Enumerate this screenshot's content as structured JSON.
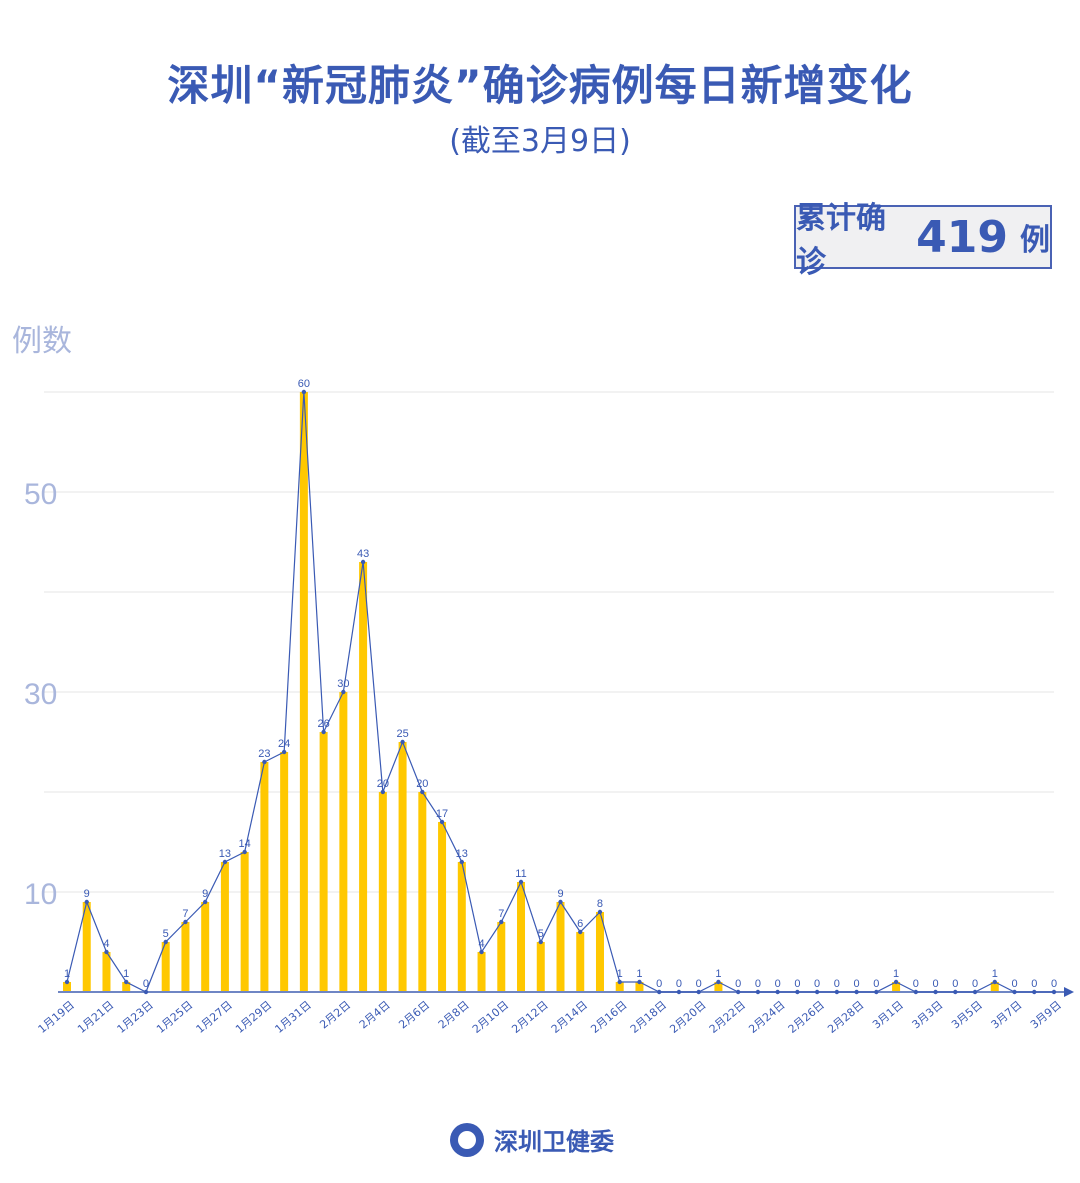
{
  "title": "深圳“新冠肺炎”确诊病例每日新增变化",
  "subtitle": "(截至3月9日)",
  "total": {
    "label": "累计确诊",
    "value": "419",
    "unit": "例"
  },
  "footer": {
    "org": "深圳卫健委",
    "logo_icon": "shenzhen-health-commission-logo"
  },
  "colors": {
    "bar": "#FFC800",
    "line": "#3a5ab4",
    "text": "#3a5ab4",
    "axis_label": "#a9b6dc",
    "grid": "#e4e4e4"
  },
  "chart_data": {
    "type": "bar",
    "title": "深圳“新冠肺炎”确诊病例每日新增变化",
    "ylabel": "例数",
    "xlabel": "",
    "ylim": [
      0,
      60
    ],
    "y_ticks": [
      10,
      30,
      50
    ],
    "grid": true,
    "x_tick_labels": [
      "1月19日",
      "1月21日",
      "1月23日",
      "1月25日",
      "1月27日",
      "1月29日",
      "1月31日",
      "2月2日",
      "2月4日",
      "2月6日",
      "2月8日",
      "2月10日",
      "2月12日",
      "2月14日",
      "2月16日",
      "2月18日",
      "2月20日",
      "2月22日",
      "2月24日",
      "2月26日",
      "2月28日",
      "3月1日",
      "3月3日",
      "3月5日",
      "3月7日",
      "3月9日"
    ],
    "overlay_line": true,
    "values": [
      1,
      9,
      4,
      1,
      0,
      5,
      7,
      9,
      13,
      14,
      23,
      24,
      60,
      26,
      30,
      43,
      20,
      25,
      20,
      17,
      13,
      4,
      7,
      11,
      5,
      9,
      6,
      8,
      1,
      1,
      0,
      0,
      0,
      1,
      0,
      0,
      0,
      0,
      0,
      0,
      0,
      0,
      1,
      0,
      0,
      0,
      0,
      1,
      0,
      0,
      0
    ]
  }
}
